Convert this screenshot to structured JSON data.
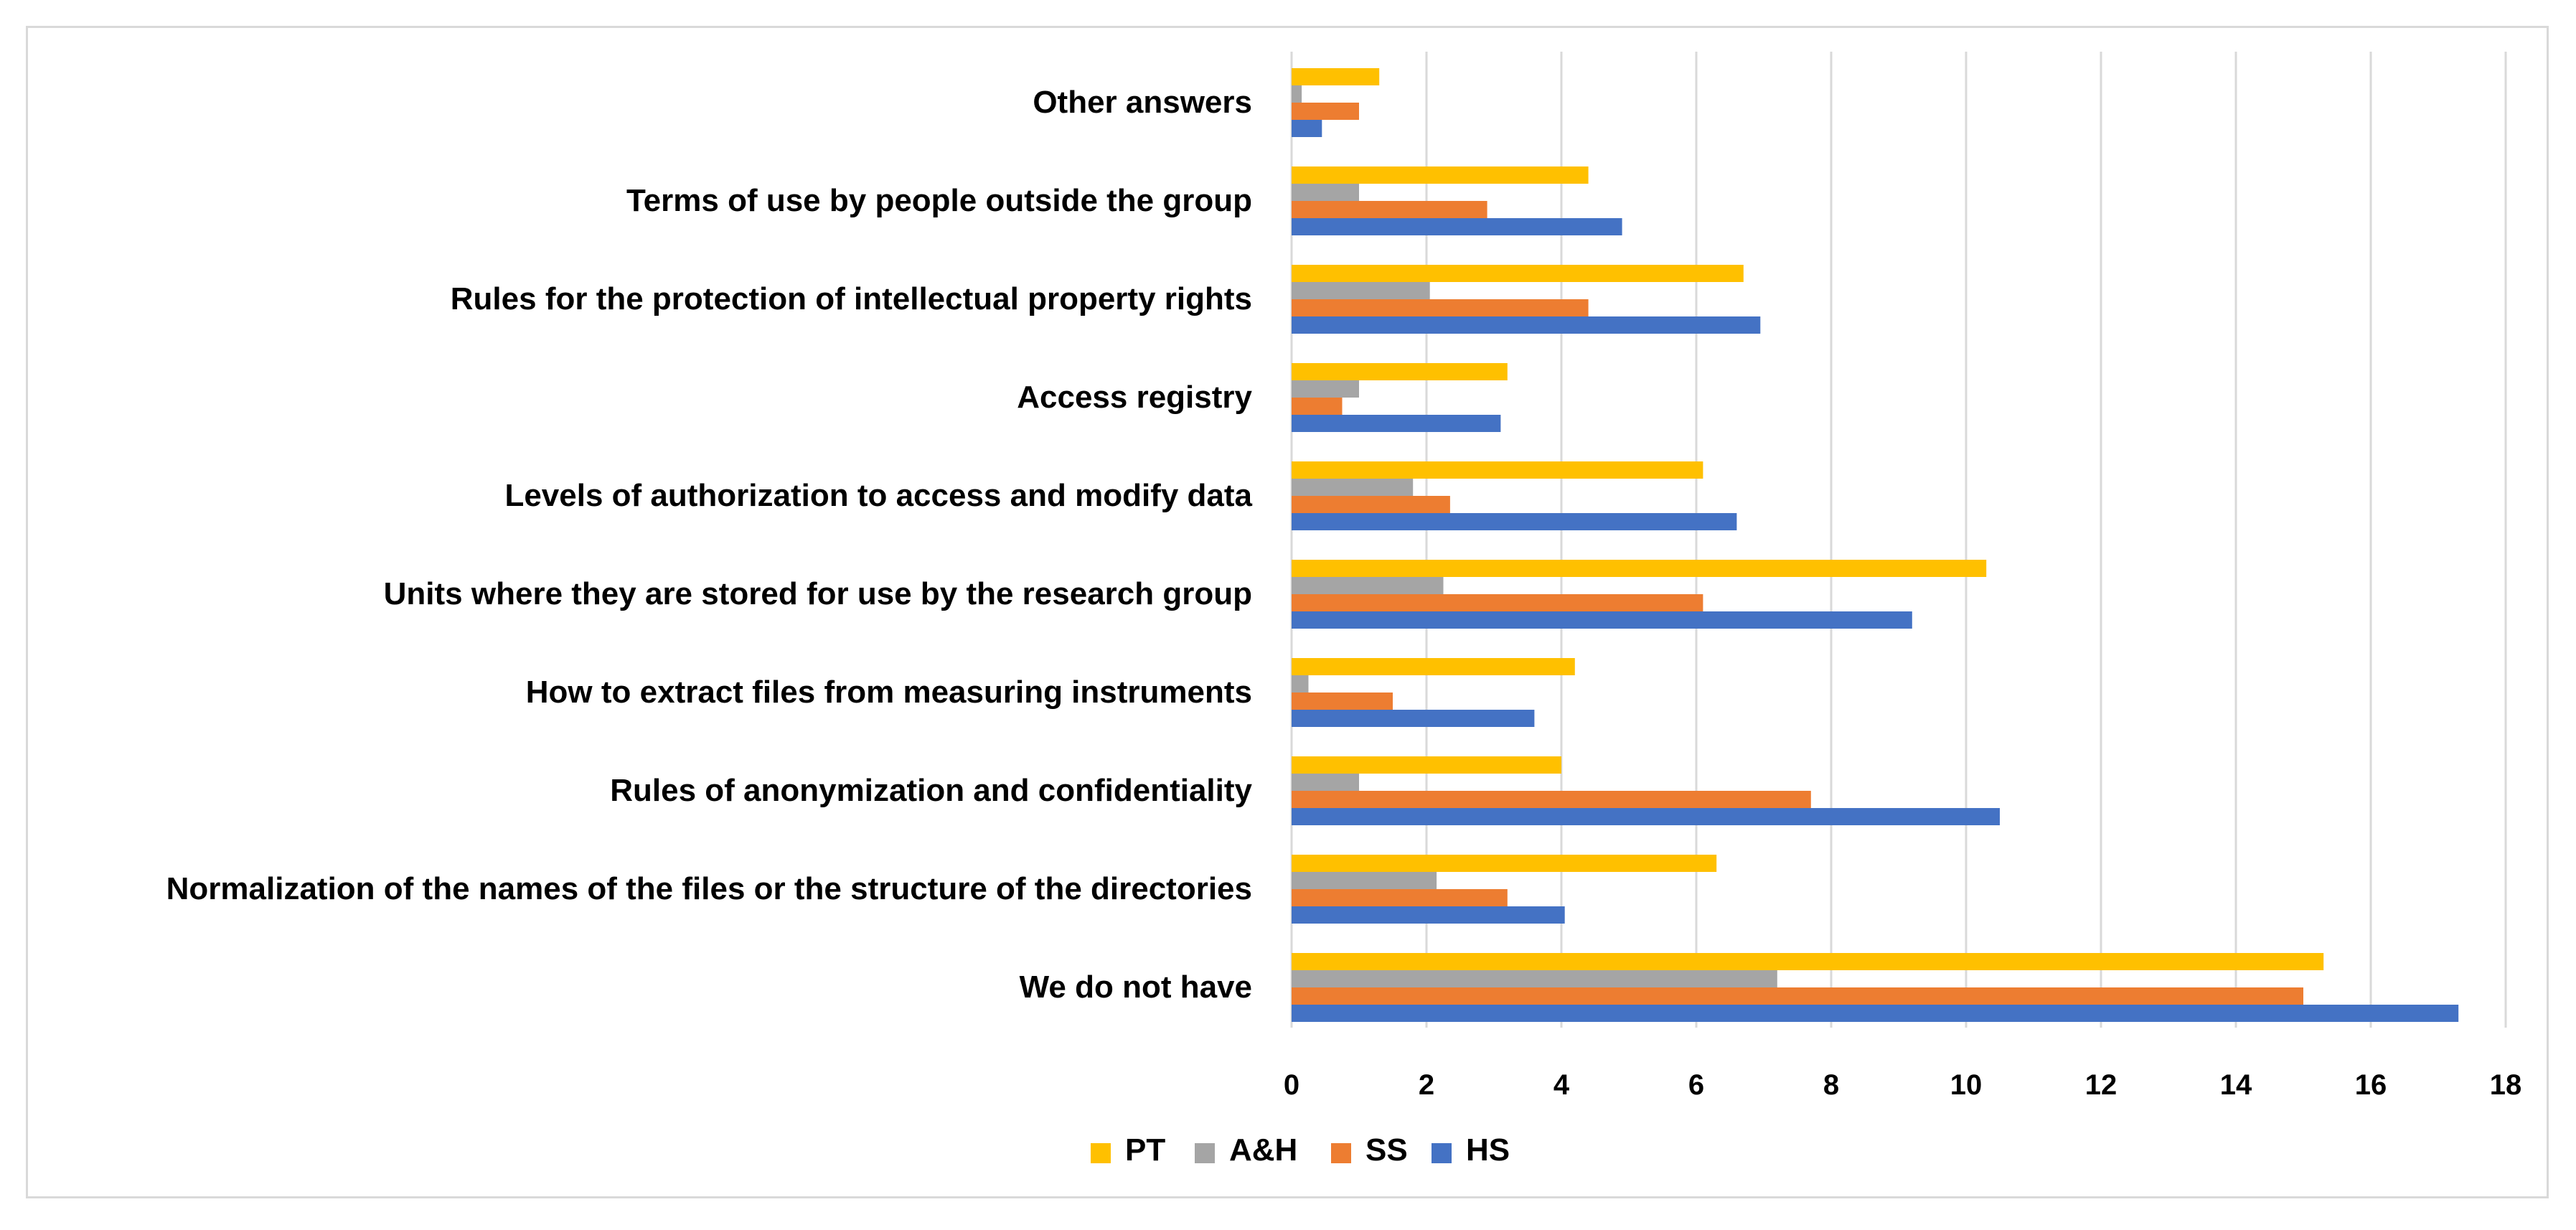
{
  "chart_data": {
    "type": "bar",
    "orientation": "horizontal",
    "title": "",
    "xlabel": "",
    "ylabel": "",
    "xlim": [
      0,
      18
    ],
    "xticks": [
      0,
      2,
      4,
      6,
      8,
      10,
      12,
      14,
      16,
      18
    ],
    "grid": true,
    "legend_position": "bottom",
    "categories": [
      "Other answers",
      "Terms of use by people outside the group",
      "Rules for the protection of intellectual property rights",
      "Access registry",
      "Levels of authorization to access and modify data",
      "Units where they are stored for use by the research group",
      "How to extract files from measuring instruments",
      "Rules of anonymization and confidentiality",
      "Normalization of the names of the files or the structure of the directories",
      "We do not have"
    ],
    "series": [
      {
        "name": "PT",
        "color": "#ffc000",
        "values": [
          1.3,
          4.4,
          6.7,
          3.2,
          6.1,
          10.3,
          4.2,
          4.0,
          6.3,
          15.3
        ]
      },
      {
        "name": "A&H",
        "color": "#a5a5a5",
        "values": [
          0.15,
          1.0,
          2.05,
          1.0,
          1.8,
          2.25,
          0.25,
          1.0,
          2.15,
          7.2
        ]
      },
      {
        "name": "SS",
        "color": "#ed7d31",
        "values": [
          1.0,
          2.9,
          4.4,
          0.75,
          2.35,
          6.1,
          1.5,
          7.7,
          3.2,
          15.0
        ]
      },
      {
        "name": "HS",
        "color": "#4472c4",
        "values": [
          0.45,
          4.9,
          6.95,
          3.1,
          6.6,
          9.2,
          3.6,
          10.5,
          4.05,
          17.3
        ]
      }
    ],
    "legend_order": [
      "PT",
      "A&H",
      "SS",
      "HS"
    ]
  },
  "colors": {
    "gridline": "#d9d9d9",
    "frame": "#d9d9d9",
    "text": "#000000"
  }
}
